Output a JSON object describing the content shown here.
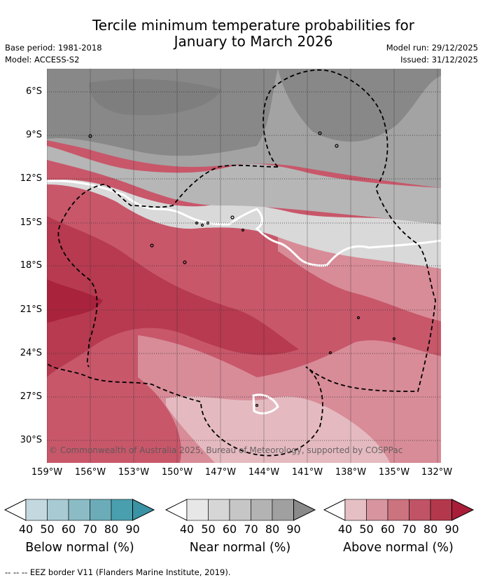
{
  "title": {
    "line1": "Tercile minimum temperature probabilities for",
    "line2": "January to March 2026"
  },
  "meta": {
    "base_period": "Base period: 1981-2018",
    "model": "Model: ACCESS-S2",
    "model_run": "Model run: 29/12/2025",
    "issued": "Issued: 31/12/2025"
  },
  "map": {
    "lat_labels": [
      "6°S",
      "9°S",
      "12°S",
      "15°S",
      "18°S",
      "21°S",
      "24°S",
      "27°S",
      "30°S"
    ],
    "lon_labels": [
      "159°W",
      "156°W",
      "153°W",
      "150°W",
      "147°W",
      "144°W",
      "141°W",
      "138°W",
      "135°W",
      "132°W"
    ],
    "copyright": "© Commonwealth of Australia 2025, Bureau of Meteorology, supported by COSPPac"
  },
  "legend": {
    "ticks": [
      "40",
      "50",
      "60",
      "70",
      "80",
      "90"
    ],
    "bars": [
      {
        "label": "Below normal (%)",
        "colors": [
          "#ffffff",
          "#c4d9df",
          "#a8cbd3",
          "#8bbcc6",
          "#6cacb9",
          "#4a9fae",
          "#3a93a4"
        ]
      },
      {
        "label": "Near normal (%)",
        "colors": [
          "#ffffff",
          "#e7e7e7",
          "#d6d6d6",
          "#c6c6c6",
          "#b3b3b3",
          "#a0a0a0",
          "#8a8a8a"
        ]
      },
      {
        "label": "Above normal (%)",
        "colors": [
          "#ffffff",
          "#e6bfc5",
          "#d8959f",
          "#cc7380",
          "#c05466",
          "#b4384c",
          "#a81e38"
        ]
      }
    ]
  },
  "footnote": "--  --  -- EEZ border V11 (Flanders Marine Institute, 2019)."
}
